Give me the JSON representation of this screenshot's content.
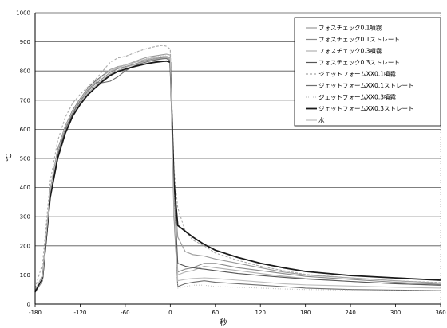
{
  "chart_data": {
    "type": "line",
    "xlabel": "秒",
    "ylabel": "℃",
    "xlim": [
      -180,
      360
    ],
    "ylim": [
      0,
      1000
    ],
    "x_ticks": [
      "-180",
      "-120",
      "-60",
      "0",
      "60",
      "120",
      "180",
      "240",
      "300",
      "360"
    ],
    "x_tick_values": [
      -180,
      -120,
      -60,
      0,
      60,
      120,
      180,
      240,
      300,
      360
    ],
    "y_ticks": [
      "0",
      "100",
      "200",
      "300",
      "400",
      "500",
      "600",
      "700",
      "800",
      "900",
      "1000"
    ],
    "y_tick_values": [
      0,
      100,
      200,
      300,
      400,
      500,
      600,
      700,
      800,
      900,
      1000
    ],
    "grid": "horizontal",
    "legend_position": "top-right",
    "x": [
      -180,
      -170,
      -160,
      -150,
      -140,
      -130,
      -120,
      -110,
      -100,
      -90,
      -80,
      -70,
      -60,
      -50,
      -40,
      -30,
      -20,
      -10,
      -5,
      0,
      5,
      10,
      20,
      30,
      45,
      60,
      90,
      120,
      150,
      180,
      240,
      300,
      360
    ],
    "series": [
      {
        "name": "フォスチェック0.1噴霧",
        "color": "#9a9a9a",
        "dash": "",
        "values": [
          45,
          90,
          380,
          520,
          600,
          660,
          700,
          735,
          760,
          785,
          805,
          815,
          820,
          830,
          840,
          848,
          852,
          856,
          858,
          855,
          420,
          230,
          180,
          170,
          165,
          155,
          140,
          125,
          110,
          100,
          90,
          80,
          72
        ]
      },
      {
        "name": "フォスチェック0.1ストレート",
        "color": "#8a8a8a",
        "dash": "",
        "values": [
          40,
          80,
          370,
          510,
          595,
          655,
          695,
          730,
          755,
          775,
          795,
          808,
          815,
          822,
          830,
          838,
          842,
          845,
          846,
          840,
          380,
          110,
          120,
          125,
          140,
          140,
          125,
          115,
          105,
          95,
          85,
          75,
          68
        ]
      },
      {
        "name": "フォスチェック0.3噴霧",
        "color": "#b0b0b0",
        "dash": "",
        "values": [
          42,
          85,
          360,
          505,
          590,
          650,
          690,
          725,
          748,
          770,
          790,
          802,
          812,
          820,
          828,
          835,
          840,
          844,
          845,
          838,
          350,
          100,
          110,
          115,
          130,
          125,
          115,
          105,
          96,
          88,
          78,
          70,
          64
        ]
      },
      {
        "name": "フォスチェック0.3ストレート",
        "color": "#555555",
        "dash": "",
        "values": [
          48,
          95,
          390,
          530,
          610,
          665,
          705,
          740,
          765,
          785,
          800,
          812,
          820,
          828,
          835,
          842,
          846,
          848,
          850,
          845,
          400,
          140,
          130,
          125,
          120,
          115,
          105,
          98,
          92,
          86,
          78,
          70,
          65
        ]
      },
      {
        "name": "ジェットフォームXX0.1噴霧",
        "color": "#a8a8a8",
        "dash": "3,2",
        "values": [
          55,
          140,
          420,
          560,
          640,
          690,
          720,
          745,
          770,
          800,
          830,
          845,
          850,
          860,
          870,
          878,
          884,
          888,
          885,
          875,
          460,
          330,
          250,
          220,
          200,
          175,
          150,
          130,
          115,
          102,
          90,
          80,
          74
        ]
      },
      {
        "name": "ジェットフォームXX0.1ストレート",
        "color": "#6e6e6e",
        "dash": "",
        "values": [
          45,
          100,
          375,
          515,
          600,
          655,
          700,
          735,
          760,
          760,
          765,
          780,
          800,
          815,
          825,
          832,
          838,
          842,
          843,
          835,
          300,
          60,
          70,
          75,
          80,
          75,
          70,
          65,
          60,
          55,
          50,
          48,
          46
        ]
      },
      {
        "name": "ジェットフォームXX0.3噴霧",
        "color": "#c4c4c4",
        "dash": "1,2",
        "values": [
          44,
          88,
          380,
          520,
          605,
          660,
          700,
          735,
          760,
          782,
          802,
          814,
          822,
          830,
          838,
          844,
          848,
          852,
          853,
          848,
          360,
          55,
          60,
          65,
          65,
          60,
          58,
          55,
          52,
          50,
          48,
          46,
          45
        ]
      },
      {
        "name": "ジェットフォームXX0.3ストレート",
        "color": "#1a1a1a",
        "dash": "",
        "values": [
          42,
          92,
          365,
          500,
          585,
          645,
          685,
          718,
          742,
          765,
          785,
          798,
          806,
          814,
          820,
          826,
          830,
          833,
          834,
          830,
          420,
          270,
          250,
          230,
          205,
          185,
          160,
          140,
          125,
          112,
          98,
          90,
          82
        ]
      },
      {
        "name": "水",
        "color": "#bdbdbd",
        "dash": "",
        "values": [
          50,
          95,
          385,
          525,
          608,
          662,
          703,
          738,
          762,
          783,
          800,
          812,
          820,
          828,
          836,
          842,
          846,
          850,
          851,
          846,
          330,
          80,
          85,
          88,
          90,
          88,
          82,
          76,
          70,
          66,
          62,
          58,
          55
        ]
      }
    ]
  }
}
